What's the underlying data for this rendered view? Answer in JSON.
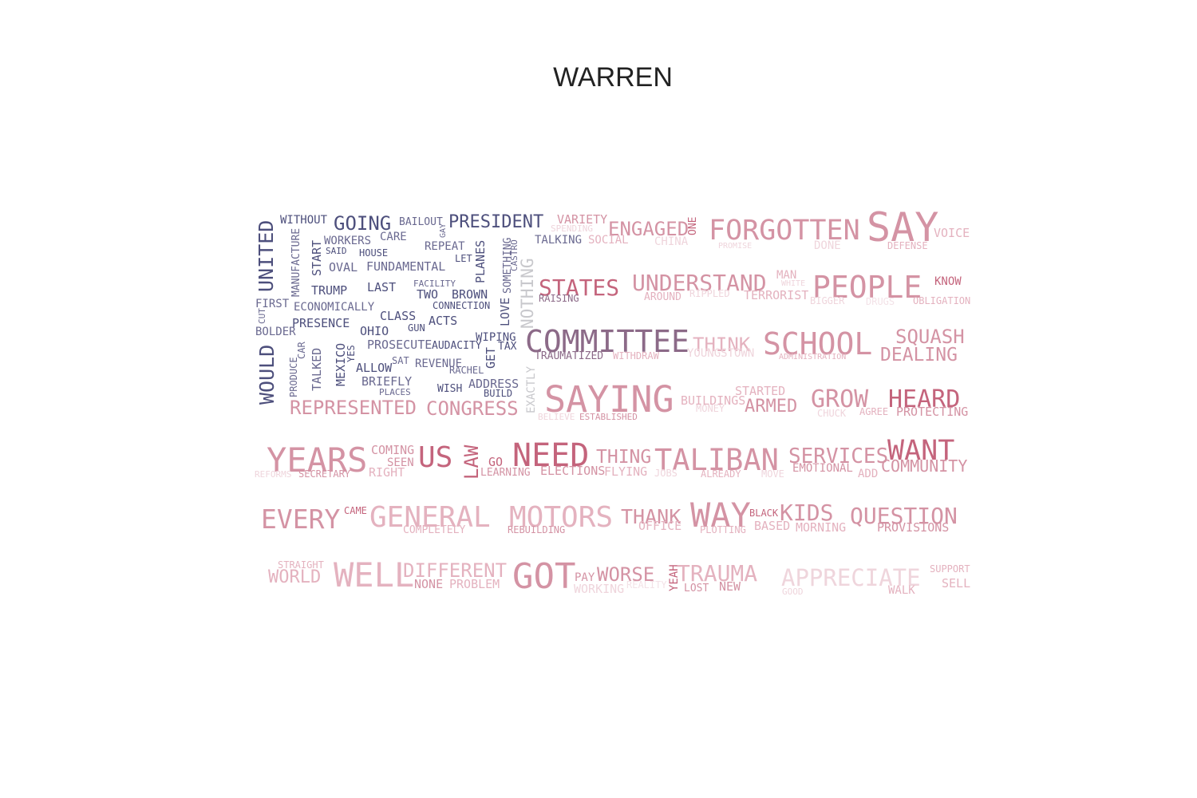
{
  "title": "WARREN",
  "palette": {
    "navy": "#4d4f7c",
    "slate": "#6a6990",
    "plum": "#8c6a88",
    "rose": "#c4647c",
    "pink": "#d493a4",
    "blush": "#e4b2bf",
    "pale": "#efd5dc",
    "faint": "#f3e2e7",
    "grey": "#c8c8cc"
  },
  "words": [
    {
      "text": "WITHOUT",
      "color": "navy"
    },
    {
      "text": "GOING",
      "color": "navy"
    },
    {
      "text": "BAILOUT",
      "color": "slate"
    },
    {
      "text": "GAY",
      "color": "slate"
    },
    {
      "text": "PRESIDENT",
      "color": "navy"
    },
    {
      "text": "VARIETY",
      "color": "pink"
    },
    {
      "text": "SPENDING",
      "color": "pale"
    },
    {
      "text": "ENGAGED",
      "color": "pink"
    },
    {
      "text": "ONE",
      "color": "rose"
    },
    {
      "text": "FORGOTTEN",
      "color": "pink"
    },
    {
      "text": "SAY",
      "color": "pink"
    },
    {
      "text": "VOICE",
      "color": "blush"
    },
    {
      "text": "UNITED",
      "color": "navy"
    },
    {
      "text": "MANUFACTURE",
      "color": "slate"
    },
    {
      "text": "WORKERS",
      "color": "slate"
    },
    {
      "text": "CARE",
      "color": "slate"
    },
    {
      "text": "START",
      "color": "navy"
    },
    {
      "text": "SAID",
      "color": "navy"
    },
    {
      "text": "HOUSE",
      "color": "navy"
    },
    {
      "text": "REPEAT",
      "color": "slate"
    },
    {
      "text": "LET",
      "color": "navy"
    },
    {
      "text": "PLANES",
      "color": "navy"
    },
    {
      "text": "SOMETHING",
      "color": "slate"
    },
    {
      "text": "CASTRO",
      "color": "slate"
    },
    {
      "text": "NOTHING",
      "color": "grey"
    },
    {
      "text": "TALKING",
      "color": "slate"
    },
    {
      "text": "SOCIAL",
      "color": "blush"
    },
    {
      "text": "CHINA",
      "color": "pale"
    },
    {
      "text": "PROMISE",
      "color": "pale"
    },
    {
      "text": "DONE",
      "color": "pale"
    },
    {
      "text": "DEFENSE",
      "color": "blush"
    },
    {
      "text": "OVAL",
      "color": "slate"
    },
    {
      "text": "FUNDAMENTAL",
      "color": "slate"
    },
    {
      "text": "STATES",
      "color": "rose"
    },
    {
      "text": "UNDERSTAND",
      "color": "pink"
    },
    {
      "text": "MAN",
      "color": "blush"
    },
    {
      "text": "WHITE",
      "color": "pale"
    },
    {
      "text": "PEOPLE",
      "color": "pink"
    },
    {
      "text": "KNOW",
      "color": "rose"
    },
    {
      "text": "TRUMP",
      "color": "navy"
    },
    {
      "text": "LAST",
      "color": "navy"
    },
    {
      "text": "FACILITY",
      "color": "slate"
    },
    {
      "text": "TWO",
      "color": "navy"
    },
    {
      "text": "BROWN",
      "color": "navy"
    },
    {
      "text": "RAISING",
      "color": "plum"
    },
    {
      "text": "AROUND",
      "color": "blush"
    },
    {
      "text": "RIPPLED",
      "color": "pale"
    },
    {
      "text": "TERRORIST",
      "color": "blush"
    },
    {
      "text": "BIGGER",
      "color": "pale"
    },
    {
      "text": "DRUGS",
      "color": "faint"
    },
    {
      "text": "OBLIGATION",
      "color": "blush"
    },
    {
      "text": "FIRST",
      "color": "slate"
    },
    {
      "text": "CUT",
      "color": "slate"
    },
    {
      "text": "ECONOMICALLY",
      "color": "slate"
    },
    {
      "text": "CONNECTION",
      "color": "navy"
    },
    {
      "text": "LOVE",
      "color": "navy"
    },
    {
      "text": "CLASS",
      "color": "navy"
    },
    {
      "text": "PRESENCE",
      "color": "navy"
    },
    {
      "text": "ACTS",
      "color": "navy"
    },
    {
      "text": "GUN",
      "color": "navy"
    },
    {
      "text": "BOLDER",
      "color": "slate"
    },
    {
      "text": "OHIO",
      "color": "navy"
    },
    {
      "text": "WIPING",
      "color": "navy"
    },
    {
      "text": "COMMITTEE",
      "color": "plum"
    },
    {
      "text": "THINK",
      "color": "blush"
    },
    {
      "text": "SCHOOL",
      "color": "pink"
    },
    {
      "text": "SQUASH",
      "color": "pink"
    },
    {
      "text": "WOULD",
      "color": "navy"
    },
    {
      "text": "CAR",
      "color": "slate"
    },
    {
      "text": "MEXICO",
      "color": "navy"
    },
    {
      "text": "YES",
      "color": "navy"
    },
    {
      "text": "PROSECUTE",
      "color": "slate"
    },
    {
      "text": "AUDACITY",
      "color": "navy"
    },
    {
      "text": "TAX",
      "color": "navy"
    },
    {
      "text": "GET",
      "color": "navy"
    },
    {
      "text": "TRAUMATIZED",
      "color": "plum"
    },
    {
      "text": "WITHDRAW",
      "color": "blush"
    },
    {
      "text": "YOUNGSTOWN",
      "color": "pale"
    },
    {
      "text": "ADMINISTRATION",
      "color": "blush"
    },
    {
      "text": "DEALING",
      "color": "pink"
    },
    {
      "text": "PRODUCE",
      "color": "slate"
    },
    {
      "text": "TALKED",
      "color": "slate"
    },
    {
      "text": "SAT",
      "color": "slate"
    },
    {
      "text": "ALLOW",
      "color": "navy"
    },
    {
      "text": "REVENUE",
      "color": "slate"
    },
    {
      "text": "RACHEL",
      "color": "slate"
    },
    {
      "text": "EXACTLY",
      "color": "grey"
    },
    {
      "text": "BRIEFLY",
      "color": "slate"
    },
    {
      "text": "ADDRESS",
      "color": "slate"
    },
    {
      "text": "WISH",
      "color": "navy"
    },
    {
      "text": "BUILD",
      "color": "navy"
    },
    {
      "text": "PLACES",
      "color": "slate"
    },
    {
      "text": "SAYING",
      "color": "pink"
    },
    {
      "text": "BUILDINGS",
      "color": "blush"
    },
    {
      "text": "MONEY",
      "color": "pale"
    },
    {
      "text": "STARTED",
      "color": "blush"
    },
    {
      "text": "ARMED",
      "color": "pink"
    },
    {
      "text": "GROW",
      "color": "pink"
    },
    {
      "text": "HEARD",
      "color": "rose"
    },
    {
      "text": "CHUCK",
      "color": "pale"
    },
    {
      "text": "AGREE",
      "color": "blush"
    },
    {
      "text": "PROTECTING",
      "color": "pink"
    },
    {
      "text": "REPRESENTED",
      "color": "pink"
    },
    {
      "text": "CONGRESS",
      "color": "pink"
    },
    {
      "text": "BELIEVE",
      "color": "pale"
    },
    {
      "text": "ESTABLISHED",
      "color": "pink"
    },
    {
      "text": "YEARS",
      "color": "pink"
    },
    {
      "text": "COMING",
      "color": "pink"
    },
    {
      "text": "SEEN",
      "color": "pink"
    },
    {
      "text": "US",
      "color": "rose"
    },
    {
      "text": "LAW",
      "color": "rose"
    },
    {
      "text": "GO",
      "color": "rose"
    },
    {
      "text": "NEED",
      "color": "rose"
    },
    {
      "text": "THING",
      "color": "pink"
    },
    {
      "text": "TALIBAN",
      "color": "pink"
    },
    {
      "text": "SERVICES",
      "color": "pink"
    },
    {
      "text": "WANT",
      "color": "rose"
    },
    {
      "text": "REFORMS",
      "color": "pale"
    },
    {
      "text": "SECRETARY",
      "color": "pink"
    },
    {
      "text": "RIGHT",
      "color": "blush"
    },
    {
      "text": "LEARNING",
      "color": "pink"
    },
    {
      "text": "ELECTIONS",
      "color": "pink"
    },
    {
      "text": "FLYING",
      "color": "blush"
    },
    {
      "text": "JOBS",
      "color": "pale"
    },
    {
      "text": "ALREADY",
      "color": "blush"
    },
    {
      "text": "MOVE",
      "color": "pale"
    },
    {
      "text": "EMOTIONAL",
      "color": "pink"
    },
    {
      "text": "ADD",
      "color": "blush"
    },
    {
      "text": "COMMUNITY",
      "color": "pink"
    },
    {
      "text": "EVERY",
      "color": "pink"
    },
    {
      "text": "CAME",
      "color": "rose"
    },
    {
      "text": "GENERAL",
      "color": "blush"
    },
    {
      "text": "MOTORS",
      "color": "blush"
    },
    {
      "text": "THANK",
      "color": "pink"
    },
    {
      "text": "WAY",
      "color": "pink"
    },
    {
      "text": "BLACK",
      "color": "rose"
    },
    {
      "text": "KIDS",
      "color": "pink"
    },
    {
      "text": "QUESTION",
      "color": "pink"
    },
    {
      "text": "COMPLETELY",
      "color": "blush"
    },
    {
      "text": "REBUILDING",
      "color": "pink"
    },
    {
      "text": "OFFICE",
      "color": "blush"
    },
    {
      "text": "PLOTTING",
      "color": "blush"
    },
    {
      "text": "BASED",
      "color": "blush"
    },
    {
      "text": "MORNING",
      "color": "blush"
    },
    {
      "text": "PROVISIONS",
      "color": "pink"
    },
    {
      "text": "STRAIGHT",
      "color": "blush"
    },
    {
      "text": "WORLD",
      "color": "blush"
    },
    {
      "text": "WELL",
      "color": "blush"
    },
    {
      "text": "DIFFERENT",
      "color": "blush"
    },
    {
      "text": "NONE",
      "color": "pink"
    },
    {
      "text": "PROBLEM",
      "color": "blush"
    },
    {
      "text": "GOT",
      "color": "pink"
    },
    {
      "text": "PAY",
      "color": "pink"
    },
    {
      "text": "WORSE",
      "color": "pink"
    },
    {
      "text": "WORKING",
      "color": "pale"
    },
    {
      "text": "REALITY",
      "color": "faint"
    },
    {
      "text": "YEAH",
      "color": "rose"
    },
    {
      "text": "TRAUMA",
      "color": "blush"
    },
    {
      "text": "LOST",
      "color": "pink"
    },
    {
      "text": "NEW",
      "color": "pink"
    },
    {
      "text": "APPRECIATE",
      "color": "pale"
    },
    {
      "text": "GOOD",
      "color": "pale"
    },
    {
      "text": "SUPPORT",
      "color": "blush"
    },
    {
      "text": "WALK",
      "color": "blush"
    },
    {
      "text": "SELL",
      "color": "blush"
    }
  ]
}
